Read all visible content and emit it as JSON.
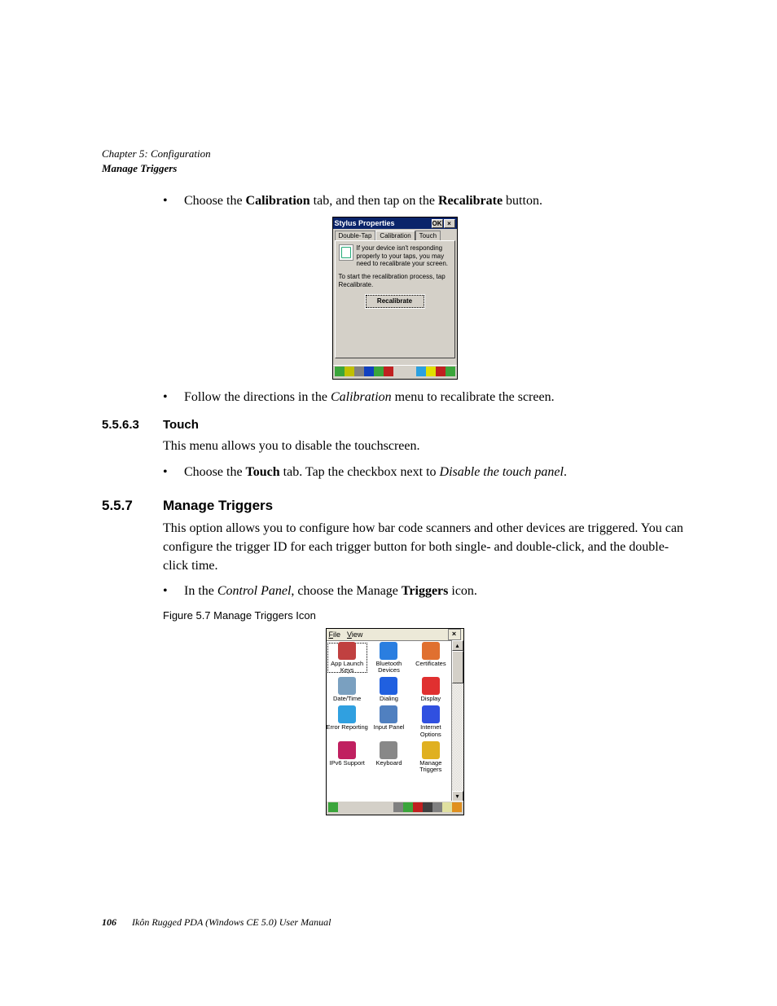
{
  "header": {
    "line1": "Chapter 5: Configuration",
    "line2": "Manage Triggers"
  },
  "para1": {
    "pre": "Choose the ",
    "b1": "Calibration",
    "mid": " tab, and then tap on the ",
    "b2": "Recalibrate",
    "post": " button."
  },
  "stylus": {
    "title": "Stylus Properties",
    "ok": "OK",
    "close": "×",
    "tabs": {
      "t1": "Double-Tap",
      "t2": "Calibration",
      "t3": "Touch"
    },
    "msg1": "If your device isn't responding properly to your taps, you may need to recalibrate your screen.",
    "msg2": "To start the recalibration process, tap Recalibrate.",
    "button": "Recalibrate",
    "taskbar_colors": [
      "#3ba53b",
      "#c0c000",
      "#808080",
      "#1040c0",
      "#3ba53b",
      "#c02020"
    ],
    "tray_colors": [
      "#2aa0e0",
      "#e0e000",
      "#c02020",
      "#3ba53b"
    ]
  },
  "para2": {
    "pre": "Follow the directions in the ",
    "it": "Calibration",
    "post": " menu to recalibrate the screen."
  },
  "sec563": {
    "num": "5.5.6.3",
    "title": "Touch"
  },
  "touch_para": "This menu allows you to disable the touchscreen.",
  "touch_bullet": {
    "pre": "Choose the ",
    "b": "Touch",
    "mid": " tab. Tap the checkbox next to ",
    "it": "Disable the touch panel",
    "post": "."
  },
  "sec557": {
    "num": "5.5.7",
    "title": "Manage Triggers"
  },
  "mt_para": "This option allows you to configure how bar code scanners and other devices are triggered. You can configure the trigger ID for each trigger button for both single- and double-click, and the double-click time.",
  "mt_bullet": {
    "pre": "In the ",
    "it": "Control Panel",
    "mid": ", choose the Manage ",
    "b": "Triggers",
    "post": " icon."
  },
  "fig": {
    "caption": "Figure 5.7  Manage Triggers Icon"
  },
  "cp": {
    "menu_file": "File",
    "menu_view": "View",
    "close": "×",
    "scroll_up": "▴",
    "scroll_down": "▾",
    "items": [
      {
        "label": "App Launch Keys",
        "color": "#c04040",
        "selected": true
      },
      {
        "label": "Bluetooth Devices",
        "color": "#2a7ee0"
      },
      {
        "label": "Certificates",
        "color": "#e07030"
      },
      {
        "label": "Date/Time",
        "color": "#7aa0c0"
      },
      {
        "label": "Dialing",
        "color": "#2060e0"
      },
      {
        "label": "Display",
        "color": "#e03030"
      },
      {
        "label": "Error Reporting",
        "color": "#30a0e0"
      },
      {
        "label": "Input Panel",
        "color": "#5080c0"
      },
      {
        "label": "Internet Options",
        "color": "#3050e0"
      },
      {
        "label": "IPv6 Support",
        "color": "#c02060"
      },
      {
        "label": "Keyboard",
        "color": "#888888"
      },
      {
        "label": "Manage Triggers",
        "color": "#e0b020"
      }
    ],
    "taskbar_colors": [
      "#3ba53b"
    ],
    "tray_colors": [
      "#808080",
      "#3ba53b",
      "#c02020",
      "#404040",
      "#808080",
      "#e0e0a0",
      "#e09020"
    ]
  },
  "footer": {
    "page": "106",
    "book": "Ikôn Rugged PDA (Windows CE 5.0) User Manual"
  }
}
